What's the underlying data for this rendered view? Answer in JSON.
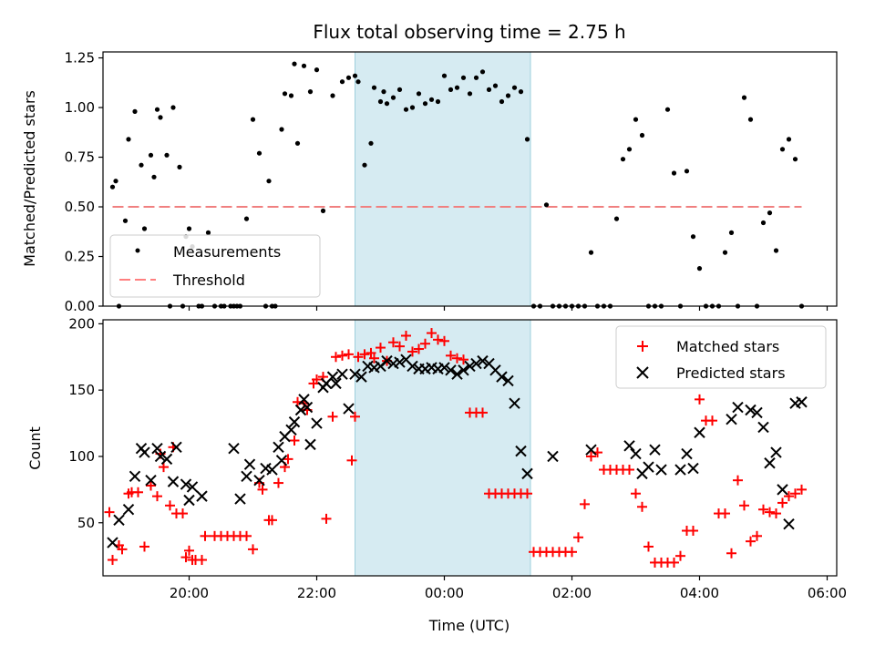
{
  "chart_data": [
    {
      "type": "scatter",
      "title": "Flux total observing time = 2.75 h",
      "xlabel": "",
      "ylabel": "Matched/Predicted stars",
      "ylim": [
        0,
        1.28
      ],
      "yticks": [
        "0.00",
        "0.25",
        "0.50",
        "0.75",
        "1.00",
        "1.25"
      ],
      "xlim": [
        -5.35,
        6.15
      ],
      "shaded_interval": [
        -1.4,
        1.35
      ],
      "threshold": {
        "name": "Threshold",
        "value": 0.5,
        "x_range": [
          -5.2,
          5.6
        ],
        "color": "#f08080"
      },
      "legend": {
        "placement": "lower-left",
        "entries": [
          "Measurements",
          "Threshold"
        ]
      },
      "series": [
        {
          "name": "Measurements",
          "color": "#000000",
          "x": [
            -5.2,
            -5.15,
            -5.1,
            -5.0,
            -4.95,
            -4.85,
            -4.75,
            -4.7,
            -4.6,
            -4.55,
            -4.5,
            -4.45,
            -4.35,
            -4.3,
            -4.25,
            -4.15,
            -4.1,
            -4.05,
            -4.0,
            -3.95,
            -3.85,
            -3.8,
            -3.7,
            -3.6,
            -3.5,
            -3.45,
            -3.35,
            -3.3,
            -3.25,
            -3.2,
            -3.1,
            -3.0,
            -2.9,
            -2.8,
            -2.75,
            -2.7,
            -2.65,
            -2.55,
            -2.5,
            -2.4,
            -2.35,
            -2.3,
            -2.2,
            -2.1,
            -2.0,
            -1.9,
            -1.75,
            -1.6,
            -1.5,
            -1.4,
            -1.35,
            -1.25,
            -1.15,
            -1.1,
            -1.0,
            -0.95,
            -0.9,
            -0.8,
            -0.7,
            -0.6,
            -0.5,
            -0.4,
            -0.3,
            -0.2,
            -0.1,
            0.0,
            0.1,
            0.2,
            0.3,
            0.4,
            0.5,
            0.6,
            0.7,
            0.8,
            0.9,
            1.0,
            1.1,
            1.2,
            1.3,
            1.4,
            1.5,
            1.6,
            1.7,
            1.8,
            1.9,
            2.0,
            2.1,
            2.2,
            2.3,
            2.4,
            2.5,
            2.6,
            2.7,
            2.8,
            2.9,
            3.0,
            3.1,
            3.2,
            3.3,
            3.4,
            3.5,
            3.6,
            3.7,
            3.8,
            3.9,
            4.0,
            4.1,
            4.2,
            4.3,
            4.4,
            4.5,
            4.6,
            4.7,
            4.8,
            4.9,
            5.0,
            5.1,
            5.2,
            5.3,
            5.4,
            5.5,
            5.6
          ],
          "y": [
            0.6,
            0.63,
            0.0,
            0.43,
            0.84,
            0.98,
            0.71,
            0.39,
            0.76,
            0.65,
            0.99,
            0.95,
            0.76,
            0.0,
            1.0,
            0.7,
            0.0,
            0.35,
            0.39,
            0.3,
            0.0,
            0.0,
            0.37,
            0.0,
            0.0,
            0.0,
            0.0,
            0.0,
            0.0,
            0.0,
            0.44,
            0.94,
            0.77,
            0.0,
            0.63,
            0.0,
            0.0,
            0.89,
            1.07,
            1.06,
            1.22,
            0.82,
            1.21,
            1.08,
            1.19,
            0.48,
            1.06,
            1.13,
            1.15,
            1.16,
            1.13,
            0.71,
            0.82,
            1.1,
            1.03,
            1.08,
            1.02,
            1.05,
            1.09,
            0.99,
            1.0,
            1.07,
            1.02,
            1.04,
            1.03,
            1.16,
            1.09,
            1.1,
            1.15,
            1.07,
            1.15,
            1.18,
            1.09,
            1.11,
            1.03,
            1.06,
            1.1,
            1.08,
            0.84,
            0.0,
            0.0,
            0.51,
            0.0,
            0.0,
            0.0,
            0.0,
            0.0,
            0.0,
            0.27,
            0.0,
            0.0,
            0.0,
            0.44,
            0.74,
            0.79,
            0.94,
            0.86,
            0.0,
            0.0,
            0.0,
            0.99,
            0.67,
            0.0,
            0.68,
            0.35,
            0.19,
            0.0,
            0.0,
            0.0,
            0.27,
            0.37,
            0.0,
            1.05,
            0.94,
            0.0,
            0.42,
            0.47,
            0.28,
            0.79,
            0.84,
            0.74,
            0.0
          ]
        }
      ]
    },
    {
      "type": "scatter",
      "title": "",
      "xlabel": "Time (UTC)",
      "ylabel": "Count",
      "ylim": [
        10,
        203
      ],
      "yticks": [
        "50",
        "100",
        "150",
        "200"
      ],
      "xlim": [
        -5.35,
        6.15
      ],
      "xticks": [
        "20:00",
        "22:00",
        "00:00",
        "02:00",
        "04:00",
        "06:00"
      ],
      "shaded_interval": [
        -1.4,
        1.35
      ],
      "legend": {
        "placement": "top-right",
        "entries": [
          "Matched stars",
          "Predicted stars"
        ]
      },
      "series": [
        {
          "name": "Matched stars",
          "color": "#ff0000",
          "x": [
            -5.25,
            -5.2,
            -5.1,
            -5.05,
            -4.95,
            -4.9,
            -4.8,
            -4.7,
            -4.6,
            -4.5,
            -4.45,
            -4.4,
            -4.3,
            -4.25,
            -4.2,
            -4.1,
            -4.05,
            -4.0,
            -3.95,
            -3.9,
            -3.8,
            -3.75,
            -3.6,
            -3.5,
            -3.4,
            -3.3,
            -3.2,
            -3.1,
            -3.0,
            -2.9,
            -2.85,
            -2.75,
            -2.7,
            -2.6,
            -2.5,
            -2.45,
            -2.35,
            -2.3,
            -2.2,
            -2.15,
            -2.05,
            -2.0,
            -1.9,
            -1.85,
            -1.75,
            -1.7,
            -1.6,
            -1.5,
            -1.45,
            -1.4,
            -1.35,
            -1.25,
            -1.15,
            -1.1,
            -1.0,
            -0.9,
            -0.8,
            -0.7,
            -0.6,
            -0.5,
            -0.4,
            -0.3,
            -0.2,
            -0.1,
            0.0,
            0.1,
            0.2,
            0.3,
            0.4,
            0.5,
            0.6,
            0.7,
            0.8,
            0.9,
            1.0,
            1.1,
            1.2,
            1.3,
            1.4,
            1.5,
            1.6,
            1.7,
            1.8,
            1.9,
            2.0,
            2.1,
            2.2,
            2.3,
            2.4,
            2.5,
            2.6,
            2.7,
            2.8,
            2.9,
            3.0,
            3.1,
            3.2,
            3.3,
            3.4,
            3.5,
            3.6,
            3.7,
            3.8,
            3.9,
            4.0,
            4.1,
            4.2,
            4.3,
            4.4,
            4.5,
            4.6,
            4.7,
            4.8,
            4.9,
            5.0,
            5.1,
            5.2,
            5.3,
            5.4,
            5.5,
            5.6
          ],
          "y": [
            58,
            22,
            33,
            30,
            72,
            73,
            73,
            32,
            78,
            70,
            102,
            92,
            63,
            107,
            57,
            57,
            24,
            29,
            22,
            22,
            22,
            40,
            40,
            40,
            40,
            40,
            40,
            40,
            30,
            80,
            75,
            52,
            52,
            80,
            92,
            98,
            112,
            141,
            140,
            135,
            155,
            158,
            160,
            53,
            130,
            175,
            176,
            177,
            97,
            130,
            175,
            177,
            178,
            174,
            182,
            172,
            186,
            183,
            191,
            179,
            181,
            185,
            193,
            188,
            187,
            176,
            174,
            173,
            133,
            133,
            133,
            72,
            72,
            72,
            72,
            72,
            72,
            72,
            28,
            28,
            28,
            28,
            28,
            28,
            28,
            39,
            64,
            100,
            103,
            90,
            90,
            90,
            90,
            90,
            72,
            62,
            32,
            20,
            20,
            20,
            20,
            25,
            44,
            44,
            143,
            127,
            127,
            57,
            57,
            27,
            82,
            63,
            36,
            40,
            60,
            58,
            57,
            65,
            70,
            72,
            75
          ],
          "count": 121
        },
        {
          "name": "Predicted stars",
          "color": "#000000",
          "x": [
            -5.2,
            -5.1,
            -4.95,
            -4.85,
            -4.75,
            -4.7,
            -4.6,
            -4.5,
            -4.45,
            -4.35,
            -4.25,
            -4.2,
            -4.05,
            -4.0,
            -3.95,
            -3.8,
            -3.3,
            -3.2,
            -3.1,
            -3.05,
            -2.9,
            -2.8,
            -2.7,
            -2.6,
            -2.55,
            -2.5,
            -2.4,
            -2.35,
            -2.25,
            -2.2,
            -2.15,
            -2.1,
            -2.0,
            -1.9,
            -1.85,
            -1.75,
            -1.7,
            -1.6,
            -1.5,
            -1.4,
            -1.3,
            -1.2,
            -1.1,
            -1.0,
            -0.9,
            -0.8,
            -0.7,
            -0.6,
            -0.5,
            -0.4,
            -0.3,
            -0.2,
            -0.1,
            0.0,
            0.1,
            0.2,
            0.3,
            0.4,
            0.5,
            0.6,
            0.7,
            0.8,
            0.9,
            1.0,
            1.1,
            1.2,
            1.3,
            1.7,
            2.3,
            2.9,
            3.0,
            3.1,
            3.2,
            3.3,
            3.4,
            3.7,
            3.8,
            3.9,
            4.0,
            4.5,
            4.6,
            4.8,
            4.9,
            5.0,
            5.1,
            5.2,
            5.3,
            5.4,
            5.5,
            5.6
          ],
          "y": [
            35,
            52,
            60,
            85,
            106,
            103,
            82,
            106,
            100,
            98,
            81,
            107,
            79,
            67,
            77,
            70,
            106,
            68,
            85,
            94,
            82,
            91,
            90,
            107,
            97,
            115,
            120,
            126,
            135,
            143,
            137,
            109,
            125,
            152,
            155,
            160,
            155,
            162,
            136,
            162,
            160,
            168,
            167,
            168,
            172,
            170,
            171,
            173,
            168,
            166,
            166,
            167,
            166,
            167,
            165,
            162,
            165,
            168,
            170,
            172,
            170,
            165,
            160,
            157,
            140,
            104,
            87,
            100,
            105,
            108,
            102,
            87,
            92,
            105,
            90,
            90,
            102,
            91,
            118,
            128,
            137,
            135,
            133,
            122,
            95,
            103,
            75,
            49,
            140,
            141
          ],
          "count": 90
        }
      ]
    }
  ]
}
